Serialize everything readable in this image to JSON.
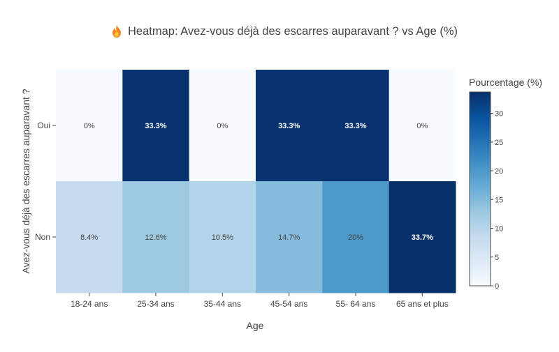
{
  "chart_data": {
    "type": "heatmap",
    "title": "Heatmap: Avez-vous déjà des escarres auparavant ? vs Age (%)",
    "title_icon": "fire-icon",
    "xlabel": "Age",
    "ylabel": "Avez-vous déjà des escarres auparavant ?",
    "x_categories": [
      "18-24 ans",
      "25-34 ans",
      "35-44 ans",
      "45-54 ans",
      "55- 64 ans",
      "65 ans et plus"
    ],
    "y_categories": [
      "Oui",
      "Non"
    ],
    "values": [
      [
        0,
        33.3,
        0,
        33.3,
        33.3,
        0
      ],
      [
        8.4,
        12.6,
        10.5,
        14.7,
        20,
        33.7
      ]
    ],
    "cell_labels": [
      [
        "0%",
        "33.3%",
        "0%",
        "33.3%",
        "33.3%",
        "0%"
      ],
      [
        "8.4%",
        "12.6%",
        "10.5%",
        "14.7%",
        "20%",
        "33.7%"
      ]
    ],
    "colorbar": {
      "title": "Pourcentage (%)",
      "range": [
        0,
        33.7
      ],
      "ticks": [
        0,
        5,
        10,
        15,
        20,
        25,
        30
      ],
      "colorscale": "Blues"
    }
  }
}
